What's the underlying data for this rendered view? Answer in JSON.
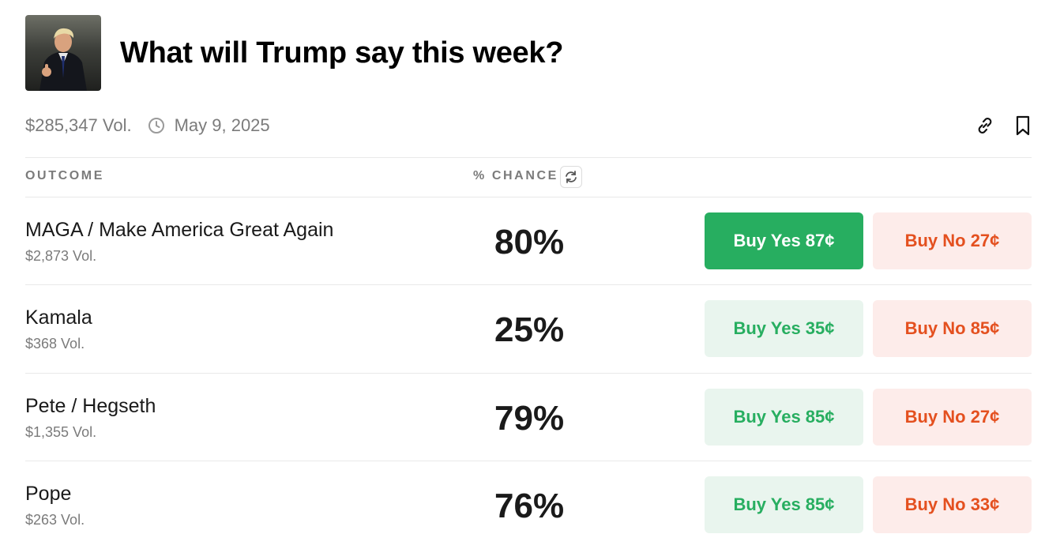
{
  "market": {
    "title": "What will Trump say this week?",
    "volume": "$285,347 Vol.",
    "date": "May 9, 2025"
  },
  "icons": {
    "clock": "clock-icon",
    "link": "link-icon",
    "bookmark": "bookmark-icon",
    "refresh": "refresh-icon"
  },
  "table": {
    "outcome_header": "OUTCOME",
    "chance_header": "% CHANCE",
    "rows": [
      {
        "name": "MAGA / Make America Great Again",
        "volume": "$2,873 Vol.",
        "chance": "80%",
        "yes": "Buy Yes 87¢",
        "no": "Buy No 27¢",
        "yes_selected": true
      },
      {
        "name": "Kamala",
        "volume": "$368 Vol.",
        "chance": "25%",
        "yes": "Buy Yes 35¢",
        "no": "Buy No 85¢",
        "yes_selected": false
      },
      {
        "name": "Pete / Hegseth",
        "volume": "$1,355 Vol.",
        "chance": "79%",
        "yes": "Buy Yes 85¢",
        "no": "Buy No 27¢",
        "yes_selected": false
      },
      {
        "name": "Pope",
        "volume": "$263 Vol.",
        "chance": "76%",
        "yes": "Buy Yes 85¢",
        "no": "Buy No 33¢",
        "yes_selected": false
      }
    ]
  },
  "colors": {
    "yes_green": "#27ae60",
    "yes_bg": "#e9f5ee",
    "no_red": "#e4501f",
    "no_bg": "#fdecea"
  }
}
